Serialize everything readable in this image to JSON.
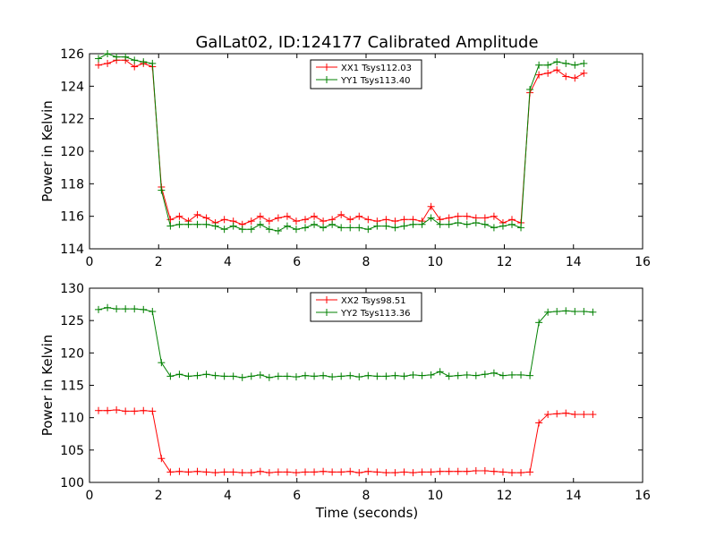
{
  "figure": {
    "title": "GalLat02, ID:124177 Calibrated Amplitude",
    "xlabel": "Time (seconds)"
  },
  "colors": {
    "red": "#ff0000",
    "green": "#008000"
  },
  "chart_data": [
    {
      "type": "line",
      "title": "GalLat02, ID:124177 Calibrated Amplitude",
      "xlabel": "",
      "ylabel": "Power in Kelvin",
      "xlim": [
        0,
        16
      ],
      "ylim": [
        114,
        126
      ],
      "xticks": [
        "0",
        "2",
        "4",
        "6",
        "8",
        "10",
        "12",
        "14",
        "16"
      ],
      "yticks": [
        "114",
        "116",
        "118",
        "120",
        "122",
        "124",
        "126"
      ],
      "grid": false,
      "legend_position": "top-center",
      "x": [
        0.26,
        0.52,
        0.78,
        1.04,
        1.3,
        1.56,
        1.82,
        2.08,
        2.34,
        2.6,
        2.86,
        3.12,
        3.38,
        3.64,
        3.9,
        4.16,
        4.42,
        4.68,
        4.94,
        5.2,
        5.46,
        5.72,
        5.98,
        6.24,
        6.5,
        6.76,
        7.02,
        7.28,
        7.54,
        7.8,
        8.06,
        8.32,
        8.58,
        8.84,
        9.1,
        9.36,
        9.62,
        9.88,
        10.14,
        10.4,
        10.66,
        10.92,
        11.18,
        11.44,
        11.7,
        11.96,
        12.22,
        12.48,
        12.74,
        13.0,
        13.26,
        13.52,
        13.78,
        14.04,
        14.3,
        14.56,
        14.82,
        15.08
      ],
      "series": [
        {
          "name": "XX1 Tsys112.03",
          "color": "#ff0000",
          "values": [
            125.3,
            125.4,
            125.6,
            125.6,
            125.2,
            125.4,
            125.2,
            117.8,
            115.8,
            116.0,
            115.7,
            116.1,
            115.9,
            115.6,
            115.8,
            115.7,
            115.5,
            115.7,
            116.0,
            115.7,
            115.9,
            116.0,
            115.7,
            115.8,
            116.0,
            115.7,
            115.8,
            116.1,
            115.8,
            116.0,
            115.8,
            115.7,
            115.8,
            115.7,
            115.8,
            115.8,
            115.7,
            116.6,
            115.8,
            115.9,
            116.0,
            116.0,
            115.9,
            115.9,
            116.0,
            115.6,
            115.8,
            115.6,
            123.6,
            124.7,
            124.8,
            125.0,
            124.6,
            124.5,
            124.8,
            null,
            null,
            null
          ],
          "note": ""
        },
        {
          "name": "YY1 Tsys113.40",
          "color": "#008000",
          "values": [
            125.7,
            126.0,
            125.8,
            125.8,
            125.6,
            125.5,
            125.4,
            117.6,
            115.4,
            115.5,
            115.5,
            115.5,
            115.5,
            115.4,
            115.2,
            115.4,
            115.2,
            115.2,
            115.5,
            115.2,
            115.1,
            115.4,
            115.2,
            115.3,
            115.5,
            115.3,
            115.5,
            115.3,
            115.3,
            115.3,
            115.2,
            115.4,
            115.4,
            115.3,
            115.4,
            115.5,
            115.5,
            115.9,
            115.5,
            115.5,
            115.6,
            115.5,
            115.6,
            115.5,
            115.3,
            115.4,
            115.5,
            115.3,
            123.8,
            125.3,
            125.3,
            125.5,
            125.4,
            125.3,
            125.4,
            null,
            null,
            null
          ]
        }
      ]
    },
    {
      "type": "line",
      "title": "",
      "xlabel": "Time (seconds)",
      "ylabel": "Power in Kelvin",
      "xlim": [
        0,
        16
      ],
      "ylim": [
        100,
        130
      ],
      "xticks": [
        "0",
        "2",
        "4",
        "6",
        "8",
        "10",
        "12",
        "14",
        "16"
      ],
      "yticks": [
        "100",
        "105",
        "110",
        "115",
        "120",
        "125",
        "130"
      ],
      "grid": false,
      "legend_position": "top-center",
      "series": [
        {
          "name": "XX2 Tsys98.51",
          "color": "#ff0000",
          "values": [
            111.1,
            111.1,
            111.2,
            111.0,
            111.0,
            111.1,
            111.0,
            103.7,
            101.6,
            101.7,
            101.6,
            101.7,
            101.6,
            101.5,
            101.6,
            101.6,
            101.5,
            101.5,
            101.7,
            101.5,
            101.6,
            101.6,
            101.5,
            101.6,
            101.6,
            101.7,
            101.6,
            101.6,
            101.7,
            101.5,
            101.7,
            101.6,
            101.5,
            101.5,
            101.6,
            101.5,
            101.6,
            101.6,
            101.7,
            101.7,
            101.7,
            101.7,
            101.8,
            101.8,
            101.7,
            101.6,
            101.5,
            101.5,
            101.6,
            109.2,
            110.5,
            110.6,
            110.7,
            110.5,
            110.5,
            110.5,
            null,
            null
          ]
        },
        {
          "name": "YY2 Tsys113.36",
          "color": "#008000",
          "values": [
            126.7,
            127.0,
            126.8,
            126.8,
            126.8,
            126.7,
            126.4,
            118.5,
            116.4,
            116.7,
            116.4,
            116.5,
            116.7,
            116.5,
            116.4,
            116.4,
            116.2,
            116.4,
            116.6,
            116.2,
            116.4,
            116.4,
            116.3,
            116.5,
            116.4,
            116.5,
            116.3,
            116.4,
            116.5,
            116.3,
            116.5,
            116.4,
            116.4,
            116.5,
            116.4,
            116.6,
            116.5,
            116.6,
            117.1,
            116.4,
            116.5,
            116.6,
            116.5,
            116.7,
            116.9,
            116.5,
            116.6,
            116.6,
            116.5,
            124.7,
            126.3,
            126.4,
            126.5,
            126.4,
            126.4,
            126.3,
            null,
            null
          ]
        }
      ]
    }
  ]
}
